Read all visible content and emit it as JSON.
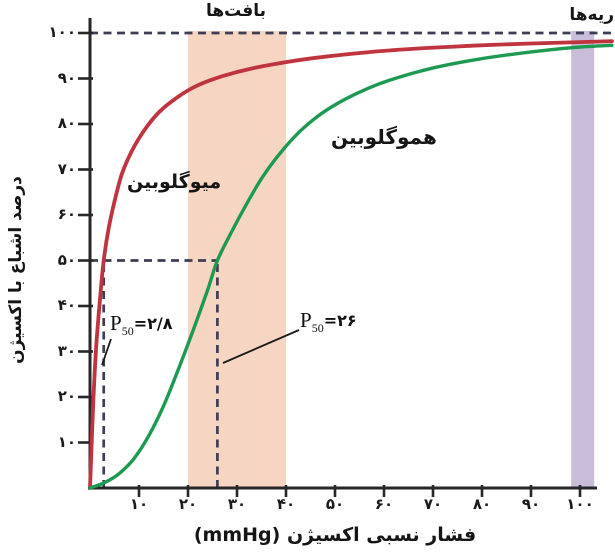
{
  "chart_data": {
    "type": "line",
    "title": "",
    "xlabel": "فشار نسبی اکسیژن (mmHg)",
    "ylabel": "درصد اشباع با اکسیژن",
    "xlim": [
      0,
      107
    ],
    "ylim": [
      0,
      100
    ],
    "grid": false,
    "legend_position": "labels-on-curves",
    "x_ticks": [
      {
        "v": 10,
        "label": "۱۰"
      },
      {
        "v": 20,
        "label": "۲۰"
      },
      {
        "v": 30,
        "label": "۳۰"
      },
      {
        "v": 40,
        "label": "۴۰"
      },
      {
        "v": 50,
        "label": "۵۰"
      },
      {
        "v": 60,
        "label": "۶۰"
      },
      {
        "v": 70,
        "label": "۷۰"
      },
      {
        "v": 80,
        "label": "۸۰"
      },
      {
        "v": 90,
        "label": "۹۰"
      },
      {
        "v": 100,
        "label": "۱۰۰"
      }
    ],
    "y_ticks": [
      {
        "v": 10,
        "label": "۱۰"
      },
      {
        "v": 20,
        "label": "۲۰"
      },
      {
        "v": 30,
        "label": "۳۰"
      },
      {
        "v": 40,
        "label": "۴۰"
      },
      {
        "v": 50,
        "label": "۵۰"
      },
      {
        "v": 60,
        "label": "۶۰"
      },
      {
        "v": 70,
        "label": "۷۰"
      },
      {
        "v": 80,
        "label": "۸۰"
      },
      {
        "v": 90,
        "label": "۹۰"
      },
      {
        "v": 100,
        "label": "۱۰۰"
      }
    ],
    "series": [
      {
        "name": "میوگلوبین",
        "name_en": "myoglobin",
        "color": "#c0343f",
        "p50_mmHg": 2.8,
        "points": [
          [
            0,
            0
          ],
          [
            0.6,
            17
          ],
          [
            1.2,
            30
          ],
          [
            2,
            41
          ],
          [
            2.8,
            50
          ],
          [
            3.8,
            57
          ],
          [
            5,
            63
          ],
          [
            6.5,
            69
          ],
          [
            8.5,
            74
          ],
          [
            11,
            78.5
          ],
          [
            14,
            82.5
          ],
          [
            18,
            86
          ],
          [
            22,
            88.5
          ],
          [
            27,
            90.5
          ],
          [
            33,
            92.2
          ],
          [
            40,
            93.6
          ],
          [
            48,
            94.8
          ],
          [
            57,
            95.8
          ],
          [
            67,
            96.6
          ],
          [
            78,
            97.2
          ],
          [
            90,
            97.7
          ],
          [
            100,
            98
          ],
          [
            106.5,
            98.2
          ]
        ]
      },
      {
        "name": "هموگلوبین",
        "name_en": "hemoglobin",
        "color": "#1d9a52",
        "p50_mmHg": 26,
        "points": [
          [
            0,
            0
          ],
          [
            3,
            1.2
          ],
          [
            6,
            3.2
          ],
          [
            9,
            6.5
          ],
          [
            12,
            11.5
          ],
          [
            15,
            18
          ],
          [
            18,
            26
          ],
          [
            21,
            34.5
          ],
          [
            24,
            43.5
          ],
          [
            26,
            50
          ],
          [
            29,
            56.5
          ],
          [
            32,
            62.5
          ],
          [
            35,
            68
          ],
          [
            38,
            72.5
          ],
          [
            42,
            77.5
          ],
          [
            46,
            81.3
          ],
          [
            50,
            84.2
          ],
          [
            55,
            87
          ],
          [
            60,
            89.2
          ],
          [
            66,
            91.2
          ],
          [
            72,
            92.8
          ],
          [
            79,
            94.2
          ],
          [
            86,
            95.3
          ],
          [
            93,
            96.2
          ],
          [
            100,
            96.9
          ],
          [
            106.5,
            97.3
          ]
        ]
      }
    ],
    "bands": [
      {
        "name": "بافت‌ها",
        "name_en": "tissues",
        "x1": 20,
        "x2": 40,
        "color": "#f6d6c2"
      },
      {
        "name": "ریه‌ها",
        "name_en": "lungs",
        "x1": 98.2,
        "x2": 102.9,
        "color": "#c9bdda"
      }
    ],
    "guides": [
      {
        "type": "h",
        "y": 100,
        "x1": 0,
        "x2": 106.5
      },
      {
        "type": "h",
        "y": 50,
        "x1": 0,
        "x2": 26
      },
      {
        "type": "v",
        "x": 2.8,
        "y1": 0,
        "y2": 50
      },
      {
        "type": "v",
        "x": 26,
        "y1": 0,
        "y2": 50
      }
    ],
    "annotations": [
      {
        "base": "P",
        "sub": "50",
        "value": "=۲/۸",
        "series": "myoglobin"
      },
      {
        "base": "P",
        "sub": "50",
        "value": "=۲۶",
        "series": "hemoglobin"
      }
    ],
    "colors": {
      "guide_dash": "#3d3d54",
      "axis": "#272727",
      "text": "#151515"
    }
  }
}
